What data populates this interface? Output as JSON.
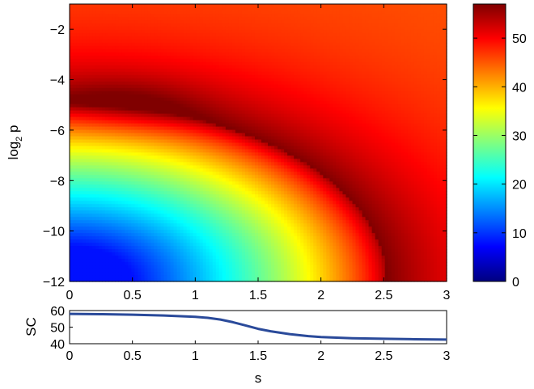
{
  "chart_data": [
    {
      "type": "heatmap",
      "xlabel": "",
      "ylabel_main": "log",
      "ylabel_sub": "2",
      "ylabel_tail": " p",
      "xlim": [
        0,
        3
      ],
      "ylim": [
        -12,
        -1
      ],
      "x_ticks": [
        0,
        0.5,
        1,
        1.5,
        2,
        2.5,
        3
      ],
      "x_tick_labels": [
        "0",
        "0.5",
        "1",
        "1.5",
        "2",
        "2.5",
        "3"
      ],
      "y_ticks": [
        -2,
        -4,
        -6,
        -8,
        -10,
        -12
      ],
      "y_tick_labels": [
        "−2",
        "−4",
        "−6",
        "−8",
        "−10",
        "−12"
      ],
      "colorbar": {
        "range": [
          0,
          57
        ],
        "ticks": [
          0,
          10,
          20,
          30,
          40,
          50
        ],
        "tick_labels": [
          "0",
          "10",
          "20",
          "30",
          "40",
          "50"
        ],
        "colormap": "jet"
      },
      "peak": {
        "s": 0.45,
        "log2p": -5.0,
        "value": 57
      },
      "background_value": 45,
      "low_corner_value": 8
    },
    {
      "type": "line",
      "xlabel": "s",
      "ylabel": "SC",
      "xlim": [
        0,
        3
      ],
      "ylim": [
        40,
        60
      ],
      "x_ticks": [
        0,
        0.5,
        1,
        1.5,
        2,
        2.5,
        3
      ],
      "x_tick_labels": [
        "0",
        "0.5",
        "1",
        "1.5",
        "2",
        "2.5",
        "3"
      ],
      "y_ticks": [
        40,
        50,
        60
      ],
      "y_tick_labels": [
        "40",
        "50",
        "60"
      ],
      "color": "#2a4a9a",
      "series": [
        {
          "x": [
            0,
            0.25,
            0.5,
            0.75,
            1.0,
            1.1,
            1.2,
            1.3,
            1.4,
            1.5,
            1.6,
            1.75,
            1.9,
            2.0,
            2.25,
            2.5,
            2.75,
            3.0
          ],
          "values": [
            58,
            57.8,
            57.5,
            57.0,
            56.2,
            55.6,
            54.6,
            53.0,
            51.0,
            49.0,
            47.5,
            45.8,
            44.6,
            44.0,
            43.3,
            43.0,
            42.7,
            42.5
          ]
        }
      ]
    }
  ]
}
